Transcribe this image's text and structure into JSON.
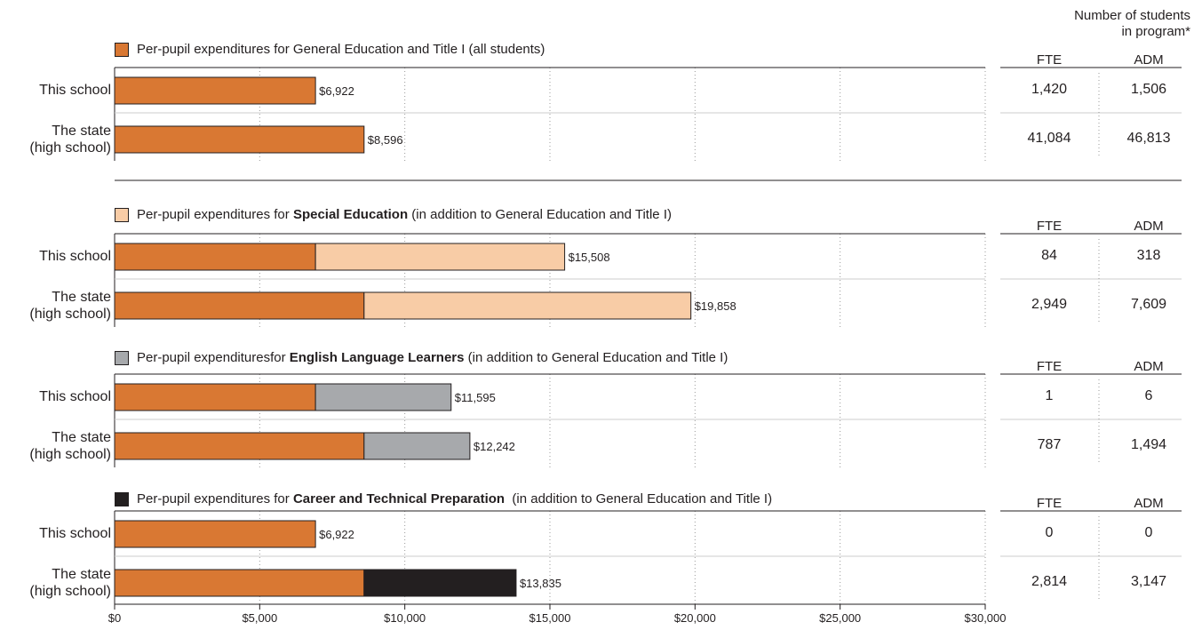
{
  "chart_data": {
    "type": "bar",
    "orientation": "horizontal",
    "stacked": true,
    "xlim": [
      0,
      30000
    ],
    "xticks": [
      "$0",
      "$5,000",
      "$10,000",
      "$15,000",
      "$20,000",
      "$25,000",
      "$30,000"
    ],
    "grid": "vertical dotted",
    "row_labels": {
      "school": "This school",
      "state_line1": "The state",
      "state_line2": "(high school)"
    },
    "counts_header": {
      "line1": "Number of students",
      "line2": "in program*"
    },
    "colors": {
      "general": "#d97833",
      "special": "#f8cca6",
      "ell": "#a7a9ac",
      "career": "#231f20",
      "line": "#231f20",
      "grid": "#999999"
    },
    "sections": [
      {
        "title": {
          "pre": "Per-pupil expenditures for General Education and Title I (all students)",
          "bold": "",
          "post": ""
        },
        "segment_color": "general",
        "rows": [
          {
            "base": 6922,
            "total": 6922,
            "label": "$6,922",
            "fte": "1,420",
            "adm": "1,506"
          },
          {
            "base": 8596,
            "total": 8596,
            "label": "$8,596",
            "fte": "41,084",
            "adm": "46,813"
          }
        ],
        "fte_label": "FTE",
        "adm_label": "ADM"
      },
      {
        "title": {
          "pre": "Per-pupil expenditures for ",
          "bold": "Special Education",
          "post": " (in addition to General Education and Title I)"
        },
        "segment_color": "special",
        "rows": [
          {
            "base": 6922,
            "total": 15508,
            "label": "$15,508",
            "fte": "84",
            "adm": "318"
          },
          {
            "base": 8596,
            "total": 19858,
            "label": "$19,858",
            "fte": "2,949",
            "adm": "7,609"
          }
        ],
        "fte_label": "FTE",
        "adm_label": "ADM"
      },
      {
        "title": {
          "pre": "Per-pupil expendituresfor ",
          "bold": "English Language Learners",
          "post": " (in addition to General Education and Title I)"
        },
        "segment_color": "ell",
        "rows": [
          {
            "base": 6922,
            "total": 11595,
            "label": "$11,595",
            "fte": "1",
            "adm": "6"
          },
          {
            "base": 8596,
            "total": 12242,
            "label": "$12,242",
            "fte": "787",
            "adm": "1,494"
          }
        ],
        "fte_label": "FTE",
        "adm_label": "ADM"
      },
      {
        "title": {
          "pre": "Per-pupil expenditures for ",
          "bold": "Career and Technical Preparation",
          "post": "  (in addition to General Education and Title I)"
        },
        "segment_color": "career",
        "rows": [
          {
            "base": 6922,
            "total": 6922,
            "label": "$6,922",
            "fte": "0",
            "adm": "0"
          },
          {
            "base": 8596,
            "total": 13835,
            "label": "$13,835",
            "fte": "2,814",
            "adm": "3,147"
          }
        ],
        "fte_label": "FTE",
        "adm_label": "ADM"
      }
    ]
  }
}
